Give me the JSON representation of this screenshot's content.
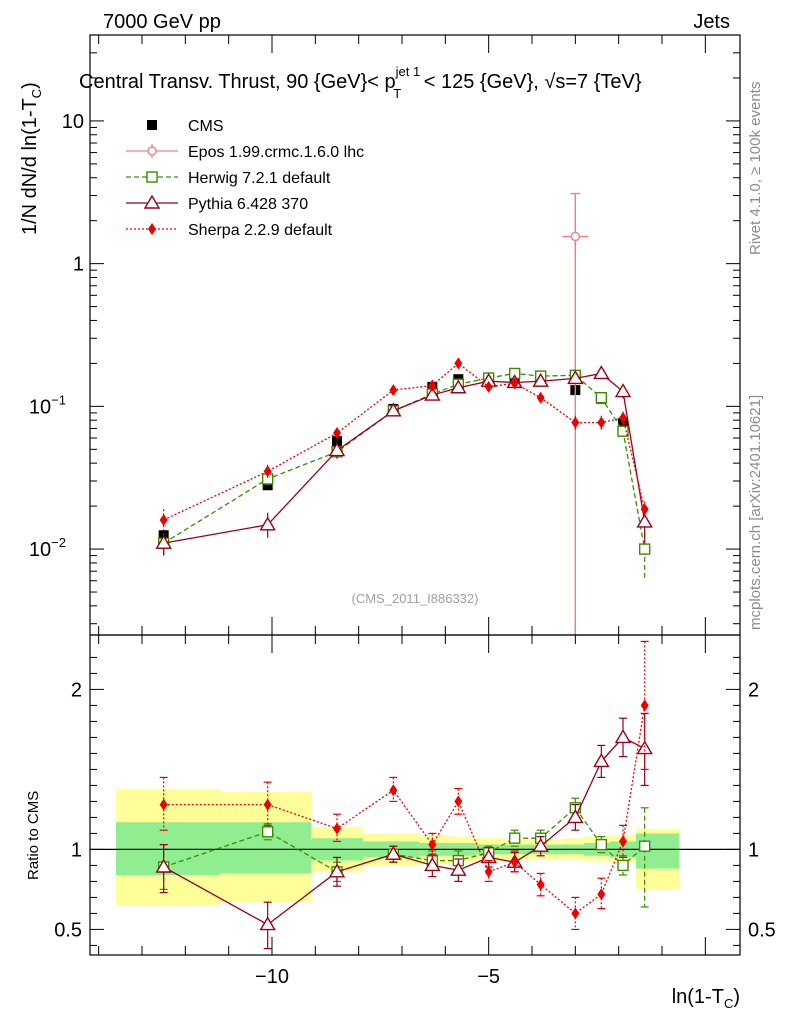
{
  "header": {
    "left": "7000 GeV pp",
    "right": "Jets",
    "title": "Central Transv. Thrust, 90 {GeV}< p",
    "title_sup": "jet 1",
    "title_sub": "T",
    "title_end": " < 125 {GeV}, √s=7 {TeV}"
  },
  "side_labels": {
    "rivet": "Rivet 4.1.0, ≥ 100k events",
    "mcplots": "mcplots.cern.ch [arXiv:2401.10621]"
  },
  "watermark": "(CMS_2011_I886332)",
  "ylabel_main": "1/N   dN/d ln(1-T",
  "ylabel_main_sub": "C",
  "ylabel_main_end": ")",
  "ylabel_ratio": "Ratio to CMS",
  "xlabel": "ln(1-T",
  "xlabel_sub": "C",
  "xlabel_end": ")",
  "colors": {
    "cms": "#000000",
    "epos": "#f08080",
    "herwig": "#3a8c00",
    "pythia": "#99001a",
    "sherpa": "#ee0000",
    "band_inner": "#90ee90",
    "band_outer": "#ffff99"
  },
  "chart_data": [
    {
      "type": "scatter",
      "panel": "main",
      "yscale": "log",
      "xlim": [
        -14.2,
        0.8
      ],
      "ylim": [
        0.0025,
        40
      ],
      "x_ticks": [
        -10,
        -5
      ],
      "y_ticks": [
        {
          "v": 0.01,
          "base": "10",
          "exp": "−2"
        },
        {
          "v": 0.1,
          "base": "10",
          "exp": "−1"
        },
        {
          "v": 1,
          "label": "1"
        },
        {
          "v": 10,
          "label": "10"
        }
      ],
      "series": [
        {
          "name": "CMS",
          "label": "CMS",
          "x": [
            -12.5,
            -10.1,
            -8.5,
            -7.2,
            -6.3,
            -5.7,
            -5.0,
            -4.4,
            -3.8,
            -3.0,
            -2.4,
            -1.9,
            -1.4
          ],
          "y": [
            0.0125,
            0.028,
            0.057,
            0.096,
            0.137,
            0.155,
            0.158,
            0.158,
            0.152,
            0.13,
            0.113,
            0.076,
            0.01
          ]
        },
        {
          "name": "Epos",
          "label": "Epos 1.99.crmc.1.6.0 lhc",
          "x": [
            -3.0
          ],
          "y": [
            1.55
          ],
          "err_hi": [
            3.1
          ],
          "err_lo": [
            0.0015
          ]
        },
        {
          "name": "Herwig",
          "label": "Herwig 7.2.1 default",
          "x": [
            -12.5,
            -10.1,
            -8.5,
            -7.2,
            -6.3,
            -5.7,
            -5.0,
            -4.4,
            -3.8,
            -3.0,
            -2.4,
            -1.9,
            -1.4
          ],
          "y": [
            0.011,
            0.031,
            0.048,
            0.093,
            0.122,
            0.143,
            0.158,
            0.17,
            0.163,
            0.165,
            0.115,
            0.067,
            0.01
          ],
          "err_hi": [
            0.013,
            0.034,
            0.053,
            0.098,
            0.128,
            0.15,
            0.165,
            0.178,
            0.17,
            0.173,
            0.122,
            0.073,
            0.013
          ],
          "err_lo": [
            0.009,
            0.028,
            0.044,
            0.088,
            0.116,
            0.136,
            0.151,
            0.162,
            0.156,
            0.157,
            0.108,
            0.061,
            0.006
          ]
        },
        {
          "name": "Pythia",
          "label": "Pythia 6.428 370",
          "x": [
            -12.5,
            -10.1,
            -8.5,
            -7.2,
            -6.3,
            -5.7,
            -5.0,
            -4.4,
            -3.8,
            -3.0,
            -2.4,
            -1.9,
            -1.4
          ],
          "y": [
            0.011,
            0.0148,
            0.049,
            0.093,
            0.12,
            0.135,
            0.15,
            0.147,
            0.15,
            0.157,
            0.17,
            0.127,
            0.0155
          ],
          "err_hi": [
            0.013,
            0.018,
            0.055,
            0.099,
            0.128,
            0.145,
            0.16,
            0.157,
            0.16,
            0.168,
            0.185,
            0.14,
            0.02
          ],
          "err_lo": [
            0.009,
            0.012,
            0.043,
            0.087,
            0.112,
            0.125,
            0.14,
            0.137,
            0.14,
            0.146,
            0.155,
            0.114,
            0.011
          ]
        },
        {
          "name": "Sherpa",
          "label": "Sherpa 2.2.9 default",
          "x": [
            -12.5,
            -10.1,
            -8.5,
            -7.2,
            -6.3,
            -5.7,
            -5.0,
            -4.4,
            -3.8,
            -3.0,
            -2.4,
            -1.9,
            -1.4
          ],
          "y": [
            0.016,
            0.035,
            0.065,
            0.13,
            0.14,
            0.2,
            0.137,
            0.145,
            0.115,
            0.077,
            0.077,
            0.083,
            0.019
          ],
          "err_hi": [
            0.019,
            0.039,
            0.071,
            0.14,
            0.15,
            0.215,
            0.147,
            0.155,
            0.125,
            0.086,
            0.086,
            0.092,
            0.0215
          ],
          "err_lo": [
            0.0135,
            0.0315,
            0.059,
            0.12,
            0.13,
            0.185,
            0.127,
            0.135,
            0.105,
            0.068,
            0.068,
            0.074,
            0.0165
          ]
        }
      ]
    },
    {
      "type": "scatter",
      "panel": "ratio",
      "yscale": "linear",
      "xlim": [
        -14.2,
        0.8
      ],
      "ylim": [
        0.34,
        2.34
      ],
      "x_ticks": [
        -10,
        -5
      ],
      "y_ticks": [
        0.5,
        1,
        2
      ],
      "band_bins": [
        {
          "x0": -13.6,
          "x1": -11.2,
          "inner": [
            0.84,
            1.17
          ],
          "outer": [
            0.65,
            1.38
          ]
        },
        {
          "x0": -11.2,
          "x1": -9.1,
          "inner": [
            0.85,
            1.17
          ],
          "outer": [
            0.67,
            1.36
          ]
        },
        {
          "x0": -9.1,
          "x1": -7.9,
          "inner": [
            0.93,
            1.07
          ],
          "outer": [
            0.86,
            1.14
          ]
        },
        {
          "x0": -7.9,
          "x1": -6.6,
          "inner": [
            0.95,
            1.05
          ],
          "outer": [
            0.9,
            1.1
          ]
        },
        {
          "x0": -6.6,
          "x1": -5.9,
          "inner": [
            0.96,
            1.04
          ],
          "outer": [
            0.91,
            1.09
          ]
        },
        {
          "x0": -5.9,
          "x1": -5.3,
          "inner": [
            0.96,
            1.04
          ],
          "outer": [
            0.92,
            1.08
          ]
        },
        {
          "x0": -5.3,
          "x1": -4.6,
          "inner": [
            0.97,
            1.03
          ],
          "outer": [
            0.93,
            1.07
          ]
        },
        {
          "x0": -4.6,
          "x1": -3.9,
          "inner": [
            0.97,
            1.03
          ],
          "outer": [
            0.94,
            1.06
          ]
        },
        {
          "x0": -3.9,
          "x1": -3.3,
          "inner": [
            0.97,
            1.03
          ],
          "outer": [
            0.94,
            1.06
          ]
        },
        {
          "x0": -3.3,
          "x1": -2.8,
          "inner": [
            0.97,
            1.03
          ],
          "outer": [
            0.94,
            1.07
          ]
        },
        {
          "x0": -2.8,
          "x1": -2.2,
          "inner": [
            0.96,
            1.04
          ],
          "outer": [
            0.93,
            1.08
          ]
        },
        {
          "x0": -2.2,
          "x1": -1.6,
          "inner": [
            0.95,
            1.05
          ],
          "outer": [
            0.92,
            1.09
          ]
        },
        {
          "x0": -1.6,
          "x1": -0.6,
          "inner": [
            0.88,
            1.1
          ],
          "outer": [
            0.75,
            1.13
          ]
        }
      ],
      "series": [
        {
          "name": "Herwig",
          "x": [
            -12.5,
            -10.1,
            -8.5,
            -7.2,
            -6.3,
            -5.7,
            -5.0,
            -4.4,
            -3.8,
            -3.0,
            -2.4,
            -1.9,
            -1.4
          ],
          "y": [
            0.89,
            1.11,
            0.86,
            0.97,
            0.93,
            0.93,
            0.98,
            1.07,
            1.07,
            1.26,
            1.03,
            0.9,
            1.02
          ],
          "err_hi": [
            1.03,
            1.16,
            0.92,
            1.02,
            0.99,
            0.99,
            1.02,
            1.12,
            1.12,
            1.32,
            1.08,
            0.96,
            1.26
          ],
          "err_lo": [
            0.75,
            1.06,
            0.8,
            0.92,
            0.87,
            0.87,
            0.94,
            1.02,
            1.02,
            1.2,
            0.98,
            0.84,
            0.64
          ]
        },
        {
          "name": "Pythia",
          "x": [
            -12.5,
            -10.1,
            -8.5,
            -7.2,
            -6.3,
            -5.7,
            -5.0,
            -4.4,
            -3.8,
            -3.0,
            -2.4,
            -1.9,
            -1.4
          ],
          "y": [
            0.89,
            0.53,
            0.86,
            0.97,
            0.9,
            0.87,
            0.95,
            0.92,
            1.02,
            1.2,
            1.55,
            1.7,
            1.63
          ],
          "err_hi": [
            1.03,
            0.67,
            0.95,
            1.02,
            0.97,
            0.94,
            1.01,
            0.98,
            1.08,
            1.28,
            1.65,
            1.82,
            1.85
          ],
          "err_lo": [
            0.73,
            0.38,
            0.77,
            0.92,
            0.83,
            0.8,
            0.89,
            0.86,
            0.96,
            1.12,
            1.45,
            1.58,
            1.4
          ]
        },
        {
          "name": "Sherpa",
          "x": [
            -12.5,
            -10.1,
            -8.5,
            -7.2,
            -6.3,
            -5.7,
            -5.0,
            -4.4,
            -3.8,
            -3.0,
            -2.4,
            -1.9,
            -1.4
          ],
          "y": [
            1.28,
            1.28,
            1.13,
            1.37,
            1.03,
            1.3,
            0.86,
            0.92,
            0.78,
            0.6,
            0.72,
            1.05,
            1.9
          ],
          "err_hi": [
            1.45,
            1.42,
            1.22,
            1.45,
            1.1,
            1.38,
            0.93,
            0.99,
            0.85,
            0.7,
            0.82,
            1.15,
            2.3
          ],
          "err_lo": [
            1.12,
            1.15,
            1.05,
            1.3,
            0.96,
            1.22,
            0.8,
            0.86,
            0.71,
            0.5,
            0.63,
            0.95,
            1.5
          ]
        }
      ]
    }
  ]
}
